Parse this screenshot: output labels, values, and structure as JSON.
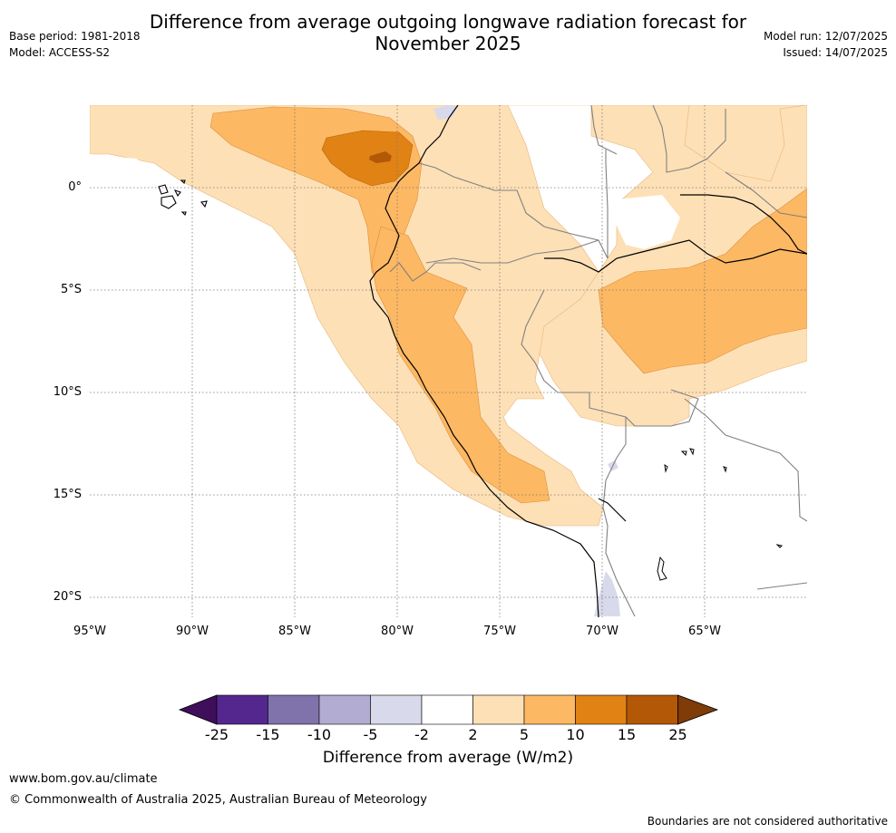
{
  "title_line1": "Difference from average outgoing longwave radiation forecast for",
  "title_line2": "November 2025",
  "meta_left": {
    "base_period": "Base period: 1981-2018",
    "model": "Model: ACCESS-S2"
  },
  "meta_right": {
    "model_run": "Model run: 12/07/2025",
    "issued": "Issued: 14/07/2025"
  },
  "map": {
    "lat_labels": [
      "0°",
      "5°S",
      "10°S",
      "15°S",
      "20°S"
    ],
    "lon_labels": [
      "95°W",
      "90°W",
      "85°W",
      "80°W",
      "75°W",
      "70°W",
      "65°W"
    ],
    "extent": {
      "lon_min": -95,
      "lon_max": -60,
      "lat_min": -21,
      "lat_max": 4
    }
  },
  "colorbar": {
    "label": "Difference from average (W/m2)",
    "ticks": [
      "-25",
      "-15",
      "-10",
      "-5",
      "-2",
      "2",
      "5",
      "10",
      "15",
      "25"
    ],
    "colors": [
      "#3f0f5c",
      "#54278f",
      "#8073ac",
      "#b2abd2",
      "#d8daeb",
      "#ffffff",
      "#fee0b6",
      "#fdb863",
      "#e08214",
      "#b35806",
      "#7f3b08"
    ]
  },
  "footer": {
    "url": "www.bom.gov.au/climate",
    "copyright": "© Commonwealth of Australia 2025, Australian Bureau of Meteorology",
    "note": "Boundaries are not considered authoritative"
  }
}
